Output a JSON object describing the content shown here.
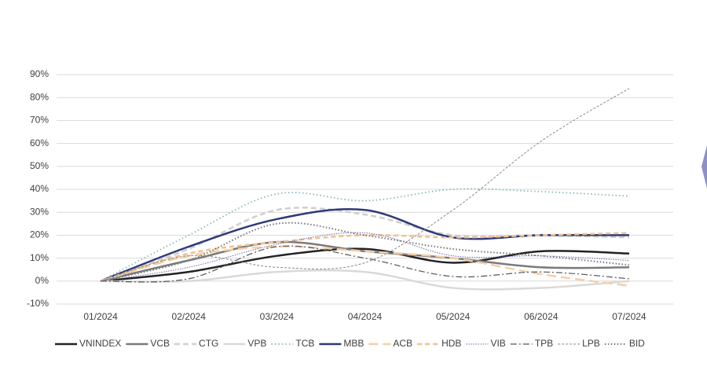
{
  "chart_data": {
    "type": "line",
    "categories": [
      "01/2024",
      "02/2024",
      "03/2024",
      "04/2024",
      "05/2024",
      "06/2024",
      "07/2024"
    ],
    "ylim": [
      -10,
      90
    ],
    "yticks": [
      {
        "value": -10,
        "label": "-10%"
      },
      {
        "value": 0,
        "label": "0%"
      },
      {
        "value": 10,
        "label": "10%"
      },
      {
        "value": 20,
        "label": "20%"
      },
      {
        "value": 30,
        "label": "30%"
      },
      {
        "value": 40,
        "label": "40%"
      },
      {
        "value": 50,
        "label": "50%"
      },
      {
        "value": 60,
        "label": "60%"
      },
      {
        "value": 70,
        "label": "70%"
      },
      {
        "value": 80,
        "label": "80%"
      },
      {
        "value": 90,
        "label": "90%"
      }
    ],
    "grid": true,
    "legend": "bottom",
    "series": [
      {
        "name": "VNINDEX",
        "color": "#222222",
        "values": [
          0,
          4,
          11,
          14,
          8,
          13,
          12
        ]
      },
      {
        "name": "VCB",
        "color": "#7a7a7a",
        "values": [
          0,
          9,
          17,
          13,
          10,
          6,
          6
        ]
      },
      {
        "name": "CTG",
        "color": "#cfcfcf",
        "values": [
          0,
          14,
          31,
          29,
          20,
          20,
          19
        ]
      },
      {
        "name": "VPB",
        "color": "#d9d9d9",
        "values": [
          0,
          0,
          4,
          4,
          -3,
          -3,
          0
        ]
      },
      {
        "name": "TCB",
        "color": "#86b8bd",
        "values": [
          0,
          20,
          38,
          35,
          40,
          39,
          37
        ]
      },
      {
        "name": "MBB",
        "color": "#2e3a78",
        "values": [
          0,
          15,
          27,
          31,
          19,
          20,
          20
        ]
      },
      {
        "name": "ACB",
        "color": "#f5cfa6",
        "values": [
          0,
          11,
          15,
          13,
          10,
          3,
          -2
        ]
      },
      {
        "name": "HDB",
        "color": "#f2c08e",
        "values": [
          0,
          12,
          17,
          20,
          19,
          20,
          21
        ]
      },
      {
        "name": "VIB",
        "color": "#6b6bb0",
        "values": [
          0,
          6,
          16,
          21,
          11,
          11,
          9
        ]
      },
      {
        "name": "TPB",
        "color": "#555555",
        "values": [
          0,
          1,
          15,
          10,
          2,
          4,
          1
        ]
      },
      {
        "name": "LPB",
        "color": "#8a8a8a",
        "values": [
          0,
          11,
          6,
          8,
          31,
          61,
          84
        ]
      },
      {
        "name": "BID",
        "color": "#777777",
        "values": [
          0,
          9,
          25,
          20,
          14,
          11,
          7
        ]
      }
    ]
  }
}
